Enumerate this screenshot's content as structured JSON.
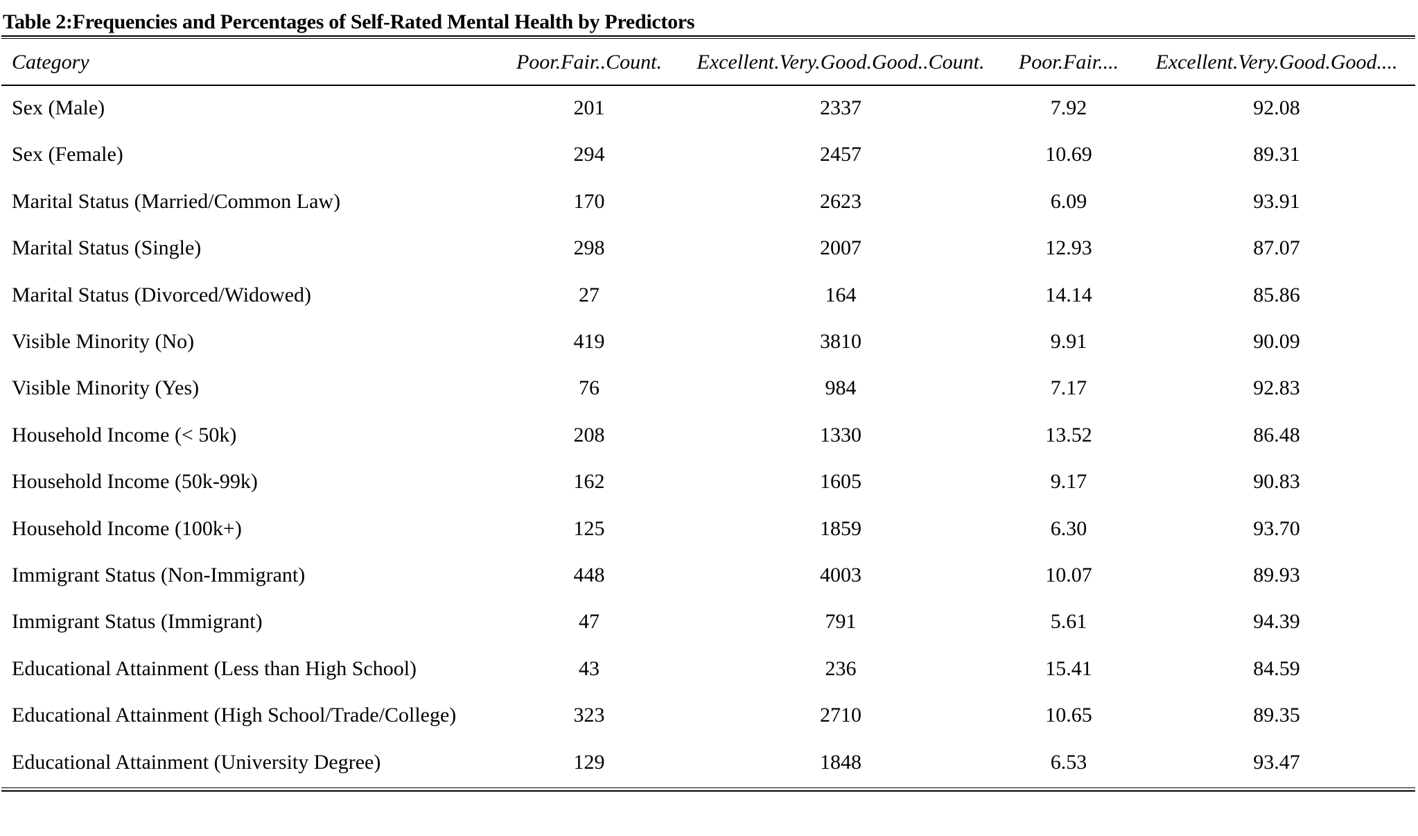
{
  "table": {
    "caption": "Table 2:Frequencies and Percentages of Self-Rated Mental Health by Predictors",
    "columns": [
      "Category",
      "Poor.Fair..Count.",
      "Excellent.Very.Good.Good..Count.",
      "Poor.Fair....",
      "Excellent.Very.Good.Good...."
    ],
    "rows": [
      [
        "Sex (Male)",
        "201",
        "2337",
        "7.92",
        "92.08"
      ],
      [
        "Sex (Female)",
        "294",
        "2457",
        "10.69",
        "89.31"
      ],
      [
        "Marital Status (Married/Common Law)",
        "170",
        "2623",
        "6.09",
        "93.91"
      ],
      [
        "Marital Status (Single)",
        "298",
        "2007",
        "12.93",
        "87.07"
      ],
      [
        "Marital Status (Divorced/Widowed)",
        "27",
        "164",
        "14.14",
        "85.86"
      ],
      [
        "Visible Minority (No)",
        "419",
        "3810",
        "9.91",
        "90.09"
      ],
      [
        "Visible Minority (Yes)",
        "76",
        "984",
        "7.17",
        "92.83"
      ],
      [
        "Household Income (< 50k)",
        "208",
        "1330",
        "13.52",
        "86.48"
      ],
      [
        "Household Income (50k-99k)",
        "162",
        "1605",
        "9.17",
        "90.83"
      ],
      [
        "Household Income (100k+)",
        "125",
        "1859",
        "6.30",
        "93.70"
      ],
      [
        "Immigrant Status (Non-Immigrant)",
        "448",
        "4003",
        "10.07",
        "89.93"
      ],
      [
        "Immigrant Status (Immigrant)",
        "47",
        "791",
        "5.61",
        "94.39"
      ],
      [
        "Educational Attainment (Less than High School)",
        "43",
        "236",
        "15.41",
        "84.59"
      ],
      [
        "Educational Attainment (High School/Trade/College)",
        "323",
        "2710",
        "10.65",
        "89.35"
      ],
      [
        "Educational Attainment (University Degree)",
        "129",
        "1848",
        "6.53",
        "93.47"
      ]
    ]
  }
}
